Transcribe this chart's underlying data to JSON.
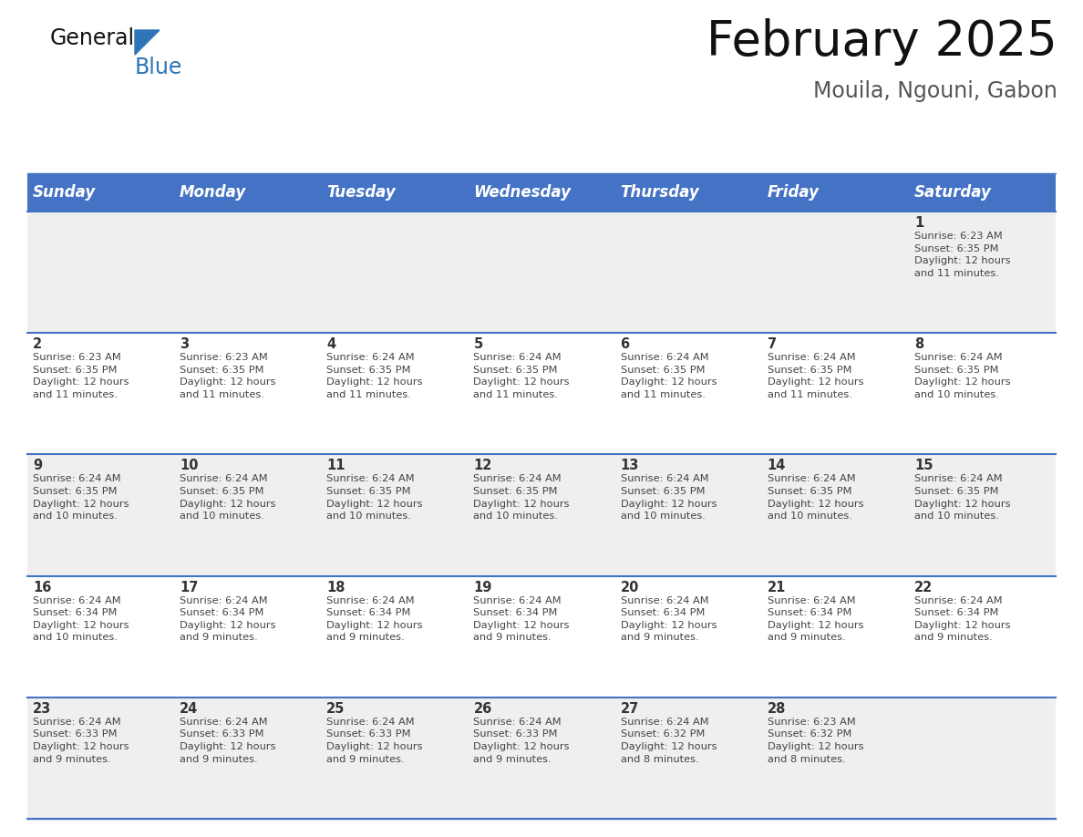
{
  "title": "February 2025",
  "subtitle": "Mouila, Ngouni, Gabon",
  "header_bg": "#4472C4",
  "header_text_color": "#FFFFFF",
  "day_names": [
    "Sunday",
    "Monday",
    "Tuesday",
    "Wednesday",
    "Thursday",
    "Friday",
    "Saturday"
  ],
  "odd_row_bg": "#EFEFEF",
  "even_row_bg": "#FFFFFF",
  "cell_border_color": "#4472C4",
  "day_number_color": "#333333",
  "info_text_color": "#444444",
  "logo_general_color": "#111111",
  "logo_blue_color": "#2E75B6",
  "logo_triangle_color": "#2E75B6",
  "title_color": "#111111",
  "subtitle_color": "#555555",
  "calendar_data": [
    [
      {
        "day": null,
        "info": null
      },
      {
        "day": null,
        "info": null
      },
      {
        "day": null,
        "info": null
      },
      {
        "day": null,
        "info": null
      },
      {
        "day": null,
        "info": null
      },
      {
        "day": null,
        "info": null
      },
      {
        "day": 1,
        "info": "Sunrise: 6:23 AM\nSunset: 6:35 PM\nDaylight: 12 hours\nand 11 minutes."
      }
    ],
    [
      {
        "day": 2,
        "info": "Sunrise: 6:23 AM\nSunset: 6:35 PM\nDaylight: 12 hours\nand 11 minutes."
      },
      {
        "day": 3,
        "info": "Sunrise: 6:23 AM\nSunset: 6:35 PM\nDaylight: 12 hours\nand 11 minutes."
      },
      {
        "day": 4,
        "info": "Sunrise: 6:24 AM\nSunset: 6:35 PM\nDaylight: 12 hours\nand 11 minutes."
      },
      {
        "day": 5,
        "info": "Sunrise: 6:24 AM\nSunset: 6:35 PM\nDaylight: 12 hours\nand 11 minutes."
      },
      {
        "day": 6,
        "info": "Sunrise: 6:24 AM\nSunset: 6:35 PM\nDaylight: 12 hours\nand 11 minutes."
      },
      {
        "day": 7,
        "info": "Sunrise: 6:24 AM\nSunset: 6:35 PM\nDaylight: 12 hours\nand 11 minutes."
      },
      {
        "day": 8,
        "info": "Sunrise: 6:24 AM\nSunset: 6:35 PM\nDaylight: 12 hours\nand 10 minutes."
      }
    ],
    [
      {
        "day": 9,
        "info": "Sunrise: 6:24 AM\nSunset: 6:35 PM\nDaylight: 12 hours\nand 10 minutes."
      },
      {
        "day": 10,
        "info": "Sunrise: 6:24 AM\nSunset: 6:35 PM\nDaylight: 12 hours\nand 10 minutes."
      },
      {
        "day": 11,
        "info": "Sunrise: 6:24 AM\nSunset: 6:35 PM\nDaylight: 12 hours\nand 10 minutes."
      },
      {
        "day": 12,
        "info": "Sunrise: 6:24 AM\nSunset: 6:35 PM\nDaylight: 12 hours\nand 10 minutes."
      },
      {
        "day": 13,
        "info": "Sunrise: 6:24 AM\nSunset: 6:35 PM\nDaylight: 12 hours\nand 10 minutes."
      },
      {
        "day": 14,
        "info": "Sunrise: 6:24 AM\nSunset: 6:35 PM\nDaylight: 12 hours\nand 10 minutes."
      },
      {
        "day": 15,
        "info": "Sunrise: 6:24 AM\nSunset: 6:35 PM\nDaylight: 12 hours\nand 10 minutes."
      }
    ],
    [
      {
        "day": 16,
        "info": "Sunrise: 6:24 AM\nSunset: 6:34 PM\nDaylight: 12 hours\nand 10 minutes."
      },
      {
        "day": 17,
        "info": "Sunrise: 6:24 AM\nSunset: 6:34 PM\nDaylight: 12 hours\nand 9 minutes."
      },
      {
        "day": 18,
        "info": "Sunrise: 6:24 AM\nSunset: 6:34 PM\nDaylight: 12 hours\nand 9 minutes."
      },
      {
        "day": 19,
        "info": "Sunrise: 6:24 AM\nSunset: 6:34 PM\nDaylight: 12 hours\nand 9 minutes."
      },
      {
        "day": 20,
        "info": "Sunrise: 6:24 AM\nSunset: 6:34 PM\nDaylight: 12 hours\nand 9 minutes."
      },
      {
        "day": 21,
        "info": "Sunrise: 6:24 AM\nSunset: 6:34 PM\nDaylight: 12 hours\nand 9 minutes."
      },
      {
        "day": 22,
        "info": "Sunrise: 6:24 AM\nSunset: 6:34 PM\nDaylight: 12 hours\nand 9 minutes."
      }
    ],
    [
      {
        "day": 23,
        "info": "Sunrise: 6:24 AM\nSunset: 6:33 PM\nDaylight: 12 hours\nand 9 minutes."
      },
      {
        "day": 24,
        "info": "Sunrise: 6:24 AM\nSunset: 6:33 PM\nDaylight: 12 hours\nand 9 minutes."
      },
      {
        "day": 25,
        "info": "Sunrise: 6:24 AM\nSunset: 6:33 PM\nDaylight: 12 hours\nand 9 minutes."
      },
      {
        "day": 26,
        "info": "Sunrise: 6:24 AM\nSunset: 6:33 PM\nDaylight: 12 hours\nand 9 minutes."
      },
      {
        "day": 27,
        "info": "Sunrise: 6:24 AM\nSunset: 6:32 PM\nDaylight: 12 hours\nand 8 minutes."
      },
      {
        "day": 28,
        "info": "Sunrise: 6:23 AM\nSunset: 6:32 PM\nDaylight: 12 hours\nand 8 minutes."
      },
      {
        "day": null,
        "info": null
      }
    ]
  ],
  "title_fontsize": 38,
  "subtitle_fontsize": 17,
  "header_fontsize": 12,
  "day_number_fontsize": 10.5,
  "info_fontsize": 8.2,
  "logo_general_fontsize": 17,
  "logo_blue_fontsize": 17,
  "fig_width": 11.88,
  "fig_height": 9.18,
  "dpi": 100
}
